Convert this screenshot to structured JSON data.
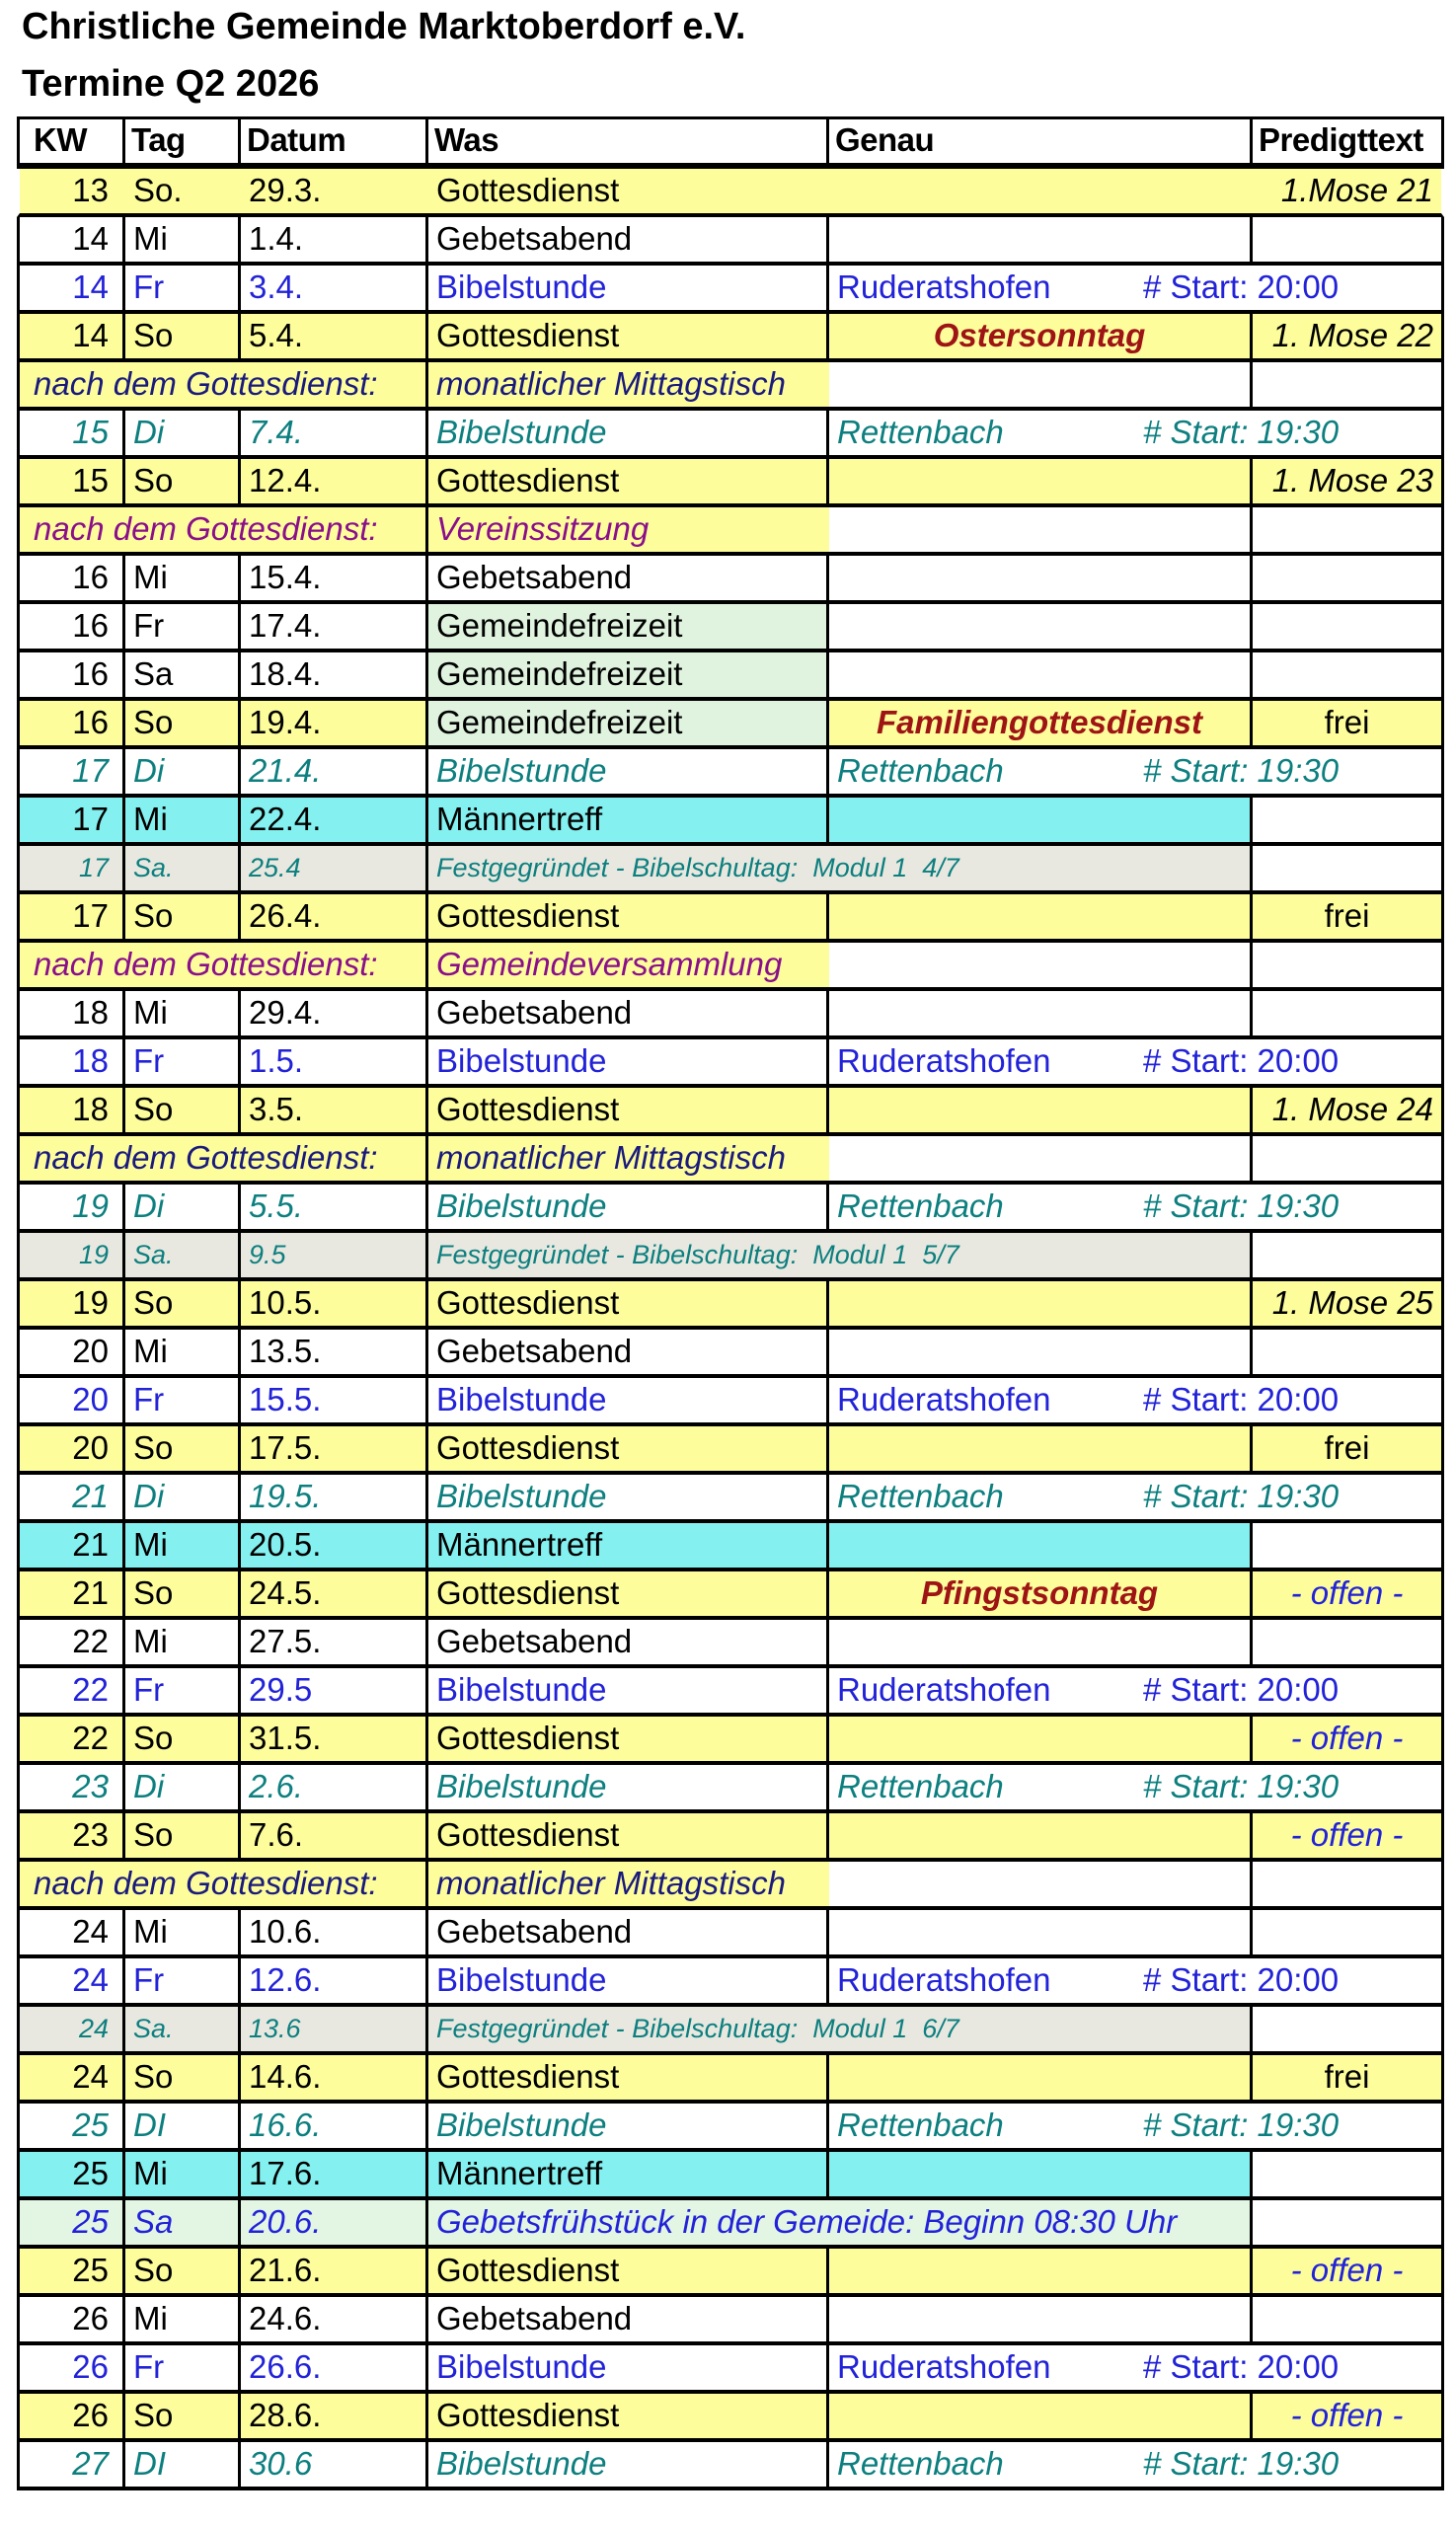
{
  "title": "Christliche Gemeinde Marktoberdorf e.V.",
  "subtitle": "Termine Q2 2026",
  "columns": [
    "KW",
    "Tag",
    "Datum",
    "Was",
    "Genau",
    "Predigttext"
  ],
  "colors": {
    "yellow": "#fdfd9c",
    "cyan": "#84f0f0",
    "green": "#dff3df",
    "green2": "#e3f6e4",
    "gray": "#e8e8e0",
    "blue": "#2222d8",
    "teal": "#0d7f7f",
    "navy": "#1a1a7d",
    "purple": "#8a0f8a",
    "red": "#9e1414",
    "border": "#000000"
  },
  "rows": [
    {
      "type": "first",
      "kw": "13",
      "tag": "So.",
      "datum": "29.3.",
      "was": "Gottesdienst",
      "genau": "",
      "predigt": "1.Mose 21",
      "pstyle": "mose"
    },
    {
      "type": "plain",
      "kw": "14",
      "tag": "Mi",
      "datum": "1.4.",
      "was": "Gebetsabend"
    },
    {
      "type": "bibel",
      "variant": "blue",
      "kw": "14",
      "tag": "Fr",
      "datum": "3.4.",
      "was": "Bibelstunde",
      "ort": "Ruderatshofen",
      "start": "# Start: 20:00"
    },
    {
      "type": "sunday",
      "kw": "14",
      "tag": "So",
      "datum": "5.4.",
      "was": "Gottesdienst",
      "genau": "Ostersonntag",
      "predigt": "1. Mose 22",
      "pstyle": "mose"
    },
    {
      "type": "after",
      "variant": "navy",
      "label": "nach dem Gottesdienst:",
      "was": "monatlicher Mittagstisch"
    },
    {
      "type": "bibel",
      "variant": "teal",
      "kw": "15",
      "tag": "Di",
      "datum": "7.4.",
      "was": "Bibelstunde",
      "ort": "Rettenbach",
      "start": "# Start: 19:30"
    },
    {
      "type": "sunday",
      "kw": "15",
      "tag": "So",
      "datum": "12.4.",
      "was": "Gottesdienst",
      "genau": "",
      "predigt": "1. Mose 23",
      "pstyle": "mose"
    },
    {
      "type": "after",
      "variant": "purple",
      "label": "nach dem Gottesdienst:",
      "was": "Vereinssitzung"
    },
    {
      "type": "plain",
      "kw": "16",
      "tag": "Mi",
      "datum": "15.4.",
      "was": "Gebetsabend"
    },
    {
      "type": "freizeit",
      "kw": "16",
      "tag": "Fr",
      "datum": "17.4.",
      "was": "Gemeindefreizeit"
    },
    {
      "type": "freizeit",
      "kw": "16",
      "tag": "Sa",
      "datum": "18.4.",
      "was": "Gemeindefreizeit"
    },
    {
      "type": "freizeit",
      "variant": "sunday",
      "kw": "16",
      "tag": "So",
      "datum": "19.4.",
      "was": "Gemeindefreizeit",
      "genau": "Familiengottesdienst",
      "predigt": "frei",
      "pstyle": "frei"
    },
    {
      "type": "bibel",
      "variant": "teal",
      "kw": "17",
      "tag": "Di",
      "datum": "21.4.",
      "was": "Bibelstunde",
      "ort": "Rettenbach",
      "start": "# Start: 19:30"
    },
    {
      "type": "maenner",
      "kw": "17",
      "tag": "Mi",
      "datum": "22.4.",
      "was": "Männertreff"
    },
    {
      "type": "fest",
      "kw": "17",
      "tag": "Sa.",
      "datum": "25.4",
      "was": "Festgegründet - Bibelschultag:  Modul 1  4/7"
    },
    {
      "type": "sunday",
      "kw": "17",
      "tag": "So",
      "datum": "26.4.",
      "was": "Gottesdienst",
      "genau": "",
      "predigt": "frei",
      "pstyle": "frei"
    },
    {
      "type": "after",
      "variant": "purple",
      "label": "nach dem Gottesdienst:",
      "was": "Gemeindeversammlung"
    },
    {
      "type": "plain",
      "kw": "18",
      "tag": "Mi",
      "datum": "29.4.",
      "was": "Gebetsabend"
    },
    {
      "type": "bibel",
      "variant": "blue",
      "kw": "18",
      "tag": "Fr",
      "datum": "1.5.",
      "was": "Bibelstunde",
      "ort": "Ruderatshofen",
      "start": "# Start: 20:00"
    },
    {
      "type": "sunday",
      "kw": "18",
      "tag": "So",
      "datum": "3.5.",
      "was": "Gottesdienst",
      "genau": "",
      "predigt": "1. Mose 24",
      "pstyle": "mose"
    },
    {
      "type": "after",
      "variant": "navy",
      "label": "nach dem Gottesdienst:",
      "was": "monatlicher Mittagstisch"
    },
    {
      "type": "bibel",
      "variant": "teal",
      "kw": "19",
      "tag": "Di",
      "datum": "5.5.",
      "was": "Bibelstunde",
      "ort": "Rettenbach",
      "start": "# Start: 19:30"
    },
    {
      "type": "fest",
      "kw": "19",
      "tag": "Sa.",
      "datum": "9.5",
      "was": "Festgegründet - Bibelschultag:  Modul 1  5/7"
    },
    {
      "type": "sunday",
      "kw": "19",
      "tag": "So",
      "datum": "10.5.",
      "was": "Gottesdienst",
      "genau": "",
      "predigt": "1. Mose 25",
      "pstyle": "mose"
    },
    {
      "type": "plain",
      "kw": "20",
      "tag": "Mi",
      "datum": "13.5.",
      "was": "Gebetsabend"
    },
    {
      "type": "bibel",
      "variant": "blue",
      "kw": "20",
      "tag": "Fr",
      "datum": "15.5.",
      "was": "Bibelstunde",
      "ort": "Ruderatshofen",
      "start": "# Start: 20:00"
    },
    {
      "type": "sunday",
      "kw": "20",
      "tag": "So",
      "datum": "17.5.",
      "was": "Gottesdienst",
      "genau": "",
      "predigt": "frei",
      "pstyle": "frei"
    },
    {
      "type": "bibel",
      "variant": "teal",
      "kw": "21",
      "tag": "Di",
      "datum": "19.5.",
      "was": "Bibelstunde",
      "ort": "Rettenbach",
      "start": "# Start: 19:30"
    },
    {
      "type": "maenner",
      "kw": "21",
      "tag": "Mi",
      "datum": "20.5.",
      "was": "Männertreff"
    },
    {
      "type": "sunday",
      "kw": "21",
      "tag": "So",
      "datum": "24.5.",
      "was": "Gottesdienst",
      "genau": "Pfingstsonntag",
      "predigt": "- offen -",
      "pstyle": "offen"
    },
    {
      "type": "plain",
      "kw": "22",
      "tag": "Mi",
      "datum": "27.5.",
      "was": "Gebetsabend"
    },
    {
      "type": "bibel",
      "variant": "blue",
      "kw": "22",
      "tag": "Fr",
      "datum": "29.5",
      "was": "Bibelstunde",
      "ort": "Ruderatshofen",
      "start": "# Start: 20:00"
    },
    {
      "type": "sunday",
      "kw": "22",
      "tag": "So",
      "datum": "31.5.",
      "was": "Gottesdienst",
      "genau": "",
      "predigt": "- offen -",
      "pstyle": "offen"
    },
    {
      "type": "bibel",
      "variant": "teal",
      "kw": "23",
      "tag": "Di",
      "datum": "2.6.",
      "was": "Bibelstunde",
      "ort": "Rettenbach",
      "start": "# Start: 19:30"
    },
    {
      "type": "sunday",
      "kw": "23",
      "tag": "So",
      "datum": "7.6.",
      "was": "Gottesdienst",
      "genau": "",
      "predigt": "- offen -",
      "pstyle": "offen"
    },
    {
      "type": "after",
      "variant": "navy",
      "label": "nach dem Gottesdienst:",
      "was": "monatlicher Mittagstisch"
    },
    {
      "type": "plain",
      "kw": "24",
      "tag": "Mi",
      "datum": "10.6.",
      "was": "Gebetsabend"
    },
    {
      "type": "bibel",
      "variant": "blue",
      "kw": "24",
      "tag": "Fr",
      "datum": "12.6.",
      "was": "Bibelstunde",
      "ort": "Ruderatshofen",
      "start": "# Start: 20:00"
    },
    {
      "type": "fest",
      "kw": "24",
      "tag": "Sa.",
      "datum": "13.6",
      "was": "Festgegründet - Bibelschultag:  Modul 1  6/7"
    },
    {
      "type": "sunday",
      "kw": "24",
      "tag": "So",
      "datum": "14.6.",
      "was": "Gottesdienst",
      "genau": "",
      "predigt": "frei",
      "pstyle": "frei"
    },
    {
      "type": "bibel",
      "variant": "teal",
      "kw": "25",
      "tag": "DI",
      "datum": "16.6.",
      "was": "Bibelstunde",
      "ort": "Rettenbach",
      "start": "# Start: 19:30"
    },
    {
      "type": "maenner",
      "kw": "25",
      "tag": "Mi",
      "datum": "17.6.",
      "was": "Männertreff"
    },
    {
      "type": "fruehstueck",
      "kw": "25",
      "tag": "Sa",
      "datum": "20.6.",
      "was": "Gebetsfrühstück in der Gemeide: Beginn 08:30 Uhr"
    },
    {
      "type": "sunday",
      "kw": "25",
      "tag": "So",
      "datum": "21.6.",
      "was": "Gottesdienst",
      "genau": "",
      "predigt": "- offen -",
      "pstyle": "offen"
    },
    {
      "type": "plain",
      "kw": "26",
      "tag": "Mi",
      "datum": "24.6.",
      "was": "Gebetsabend"
    },
    {
      "type": "bibel",
      "variant": "blue",
      "kw": "26",
      "tag": "Fr",
      "datum": "26.6.",
      "was": "Bibelstunde",
      "ort": "Ruderatshofen",
      "start": "# Start: 20:00"
    },
    {
      "type": "sunday",
      "kw": "26",
      "tag": "So",
      "datum": "28.6.",
      "was": "Gottesdienst",
      "genau": "",
      "predigt": "- offen -",
      "pstyle": "offen"
    },
    {
      "type": "bibel",
      "variant": "teal",
      "kw": "27",
      "tag": "DI",
      "datum": "30.6",
      "was": "Bibelstunde",
      "ort": "Rettenbach",
      "start": "# Start: 19:30"
    }
  ]
}
